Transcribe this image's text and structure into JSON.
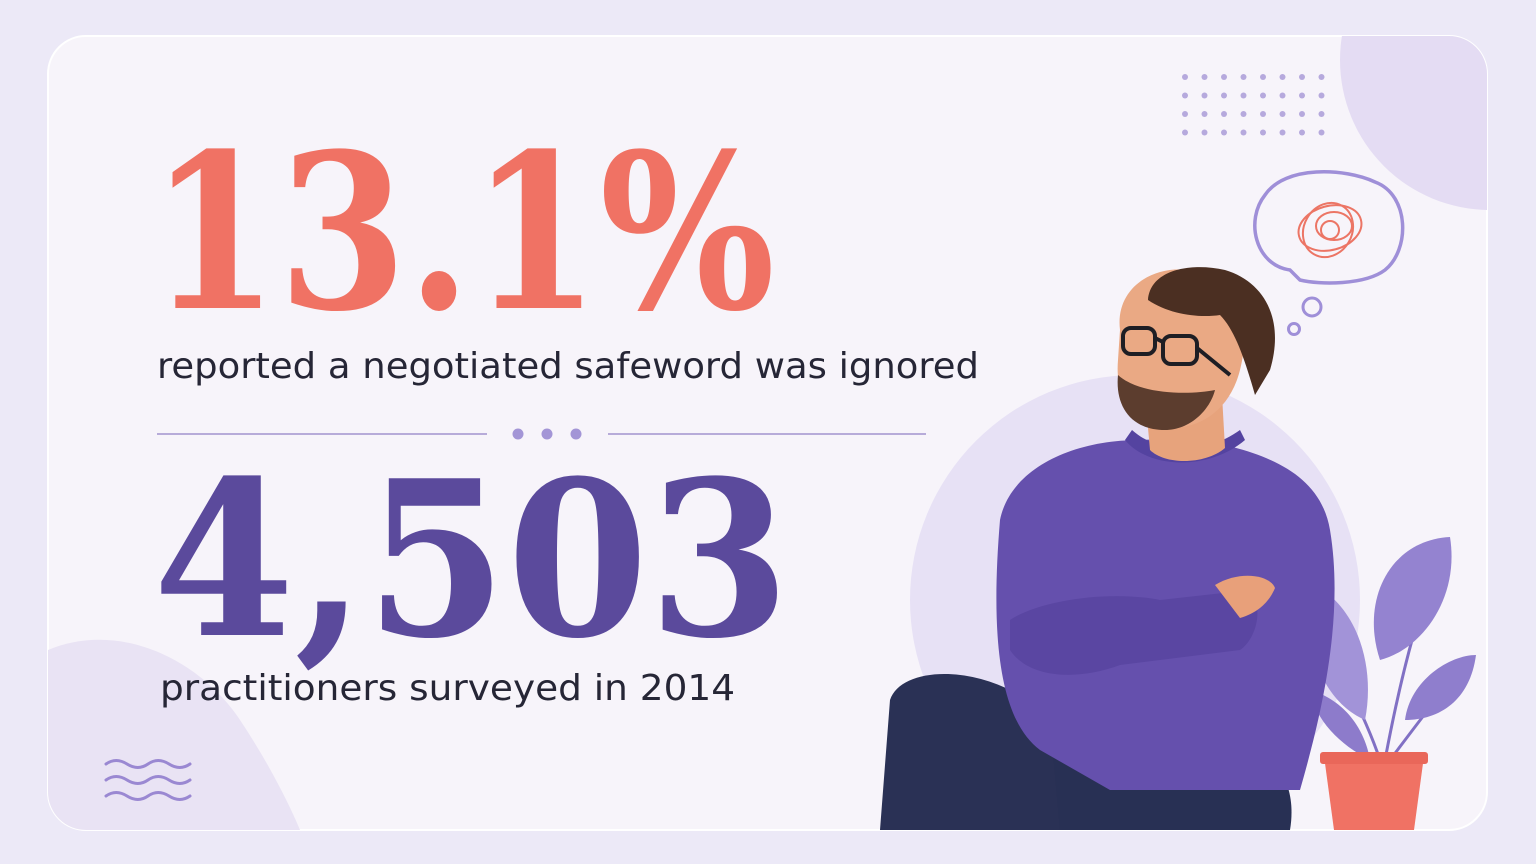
{
  "stats": [
    {
      "value": "13.1%",
      "label": "reported a negotiated safeword was ignored"
    },
    {
      "value": "4,503",
      "label": "practitioners surveyed in 2014"
    }
  ]
}
